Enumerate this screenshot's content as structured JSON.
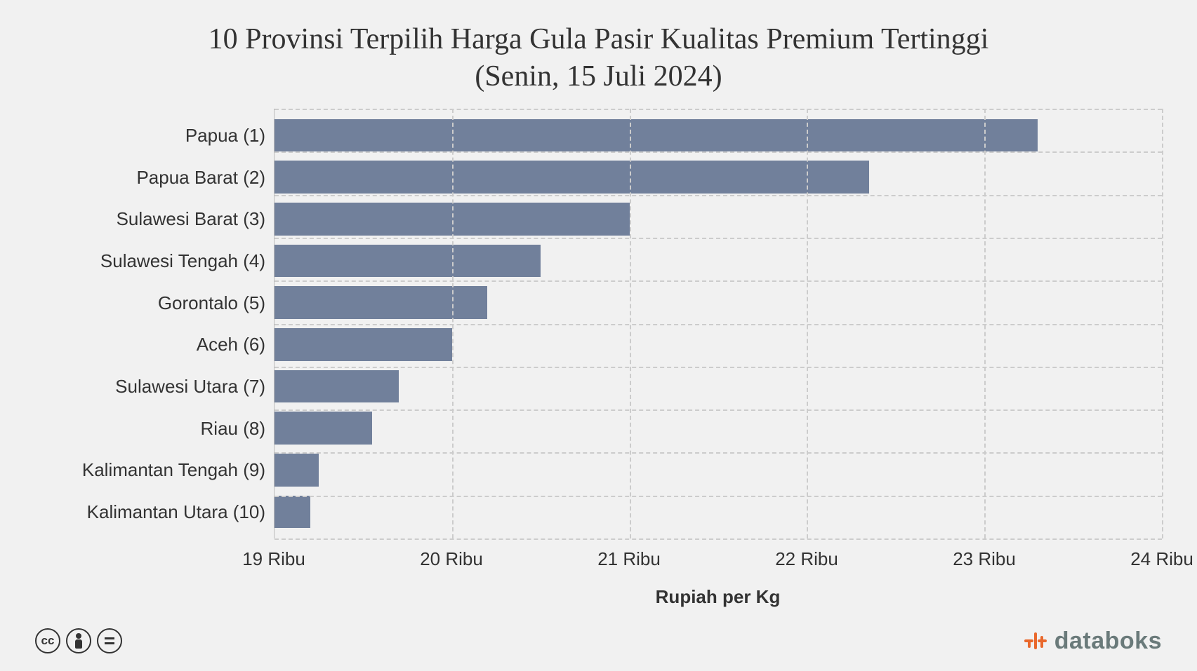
{
  "chart": {
    "type": "bar-horizontal",
    "title_line1": "10 Provinsi Terpilih Harga Gula Pasir Kualitas Premium Tertinggi",
    "title_line2": "(Senin, 15 Juli 2024)",
    "title_fontsize": 42,
    "title_color": "#333333",
    "background_color": "#f1f1f1",
    "bar_color": "#71809b",
    "grid_color": "#cccccc",
    "axis_font": "Arial",
    "axis_fontsize": 26,
    "axis_color": "#333333",
    "x_title": "Rupiah per Kg",
    "x_title_fontsize": 26,
    "x_title_weight": "700",
    "xlim": [
      19000,
      24000
    ],
    "x_ticks": [
      {
        "value": 19000,
        "label": "19 Ribu"
      },
      {
        "value": 20000,
        "label": "20 Ribu"
      },
      {
        "value": 21000,
        "label": "21 Ribu"
      },
      {
        "value": 22000,
        "label": "22 Ribu"
      },
      {
        "value": 23000,
        "label": "23 Ribu"
      },
      {
        "value": 24000,
        "label": "24 Ribu"
      }
    ],
    "categories": [
      {
        "label": "Papua (1)",
        "value": 23300
      },
      {
        "label": "Papua Barat (2)",
        "value": 22350
      },
      {
        "label": "Sulawesi Barat (3)",
        "value": 21000
      },
      {
        "label": "Sulawesi Tengah (4)",
        "value": 20500
      },
      {
        "label": "Gorontalo (5)",
        "value": 20200
      },
      {
        "label": "Aceh (6)",
        "value": 20000
      },
      {
        "label": "Sulawesi Utara (7)",
        "value": 19700
      },
      {
        "label": "Riau (8)",
        "value": 19550
      },
      {
        "label": "Kalimantan Tengah (9)",
        "value": 19250
      },
      {
        "label": "Kalimantan Utara (10)",
        "value": 19200
      }
    ]
  },
  "footer": {
    "cc_label": "cc",
    "logo_text": "databoks",
    "logo_accent_color": "#e9682c",
    "logo_text_color": "#6a7a7a"
  }
}
